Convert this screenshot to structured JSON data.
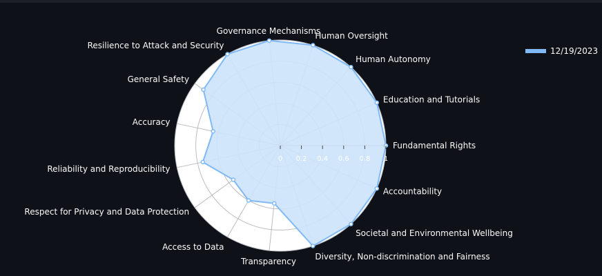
{
  "chart_data": {
    "type": "radar",
    "categories": [
      "Fundamental Rights",
      "Education and Tutorials",
      "Human Autonomy",
      "Human Oversight",
      "Governance Mechanisms",
      "Resilience to Attack and Security",
      "General Safety",
      "Accuracy",
      "Reliability and Reproducibility",
      "Respect for Privacy and Data Protection",
      "Access to Data",
      "Transparency",
      "Diversity, Non-discrimination and Fairness",
      "Societal and Environmental Wellbeing",
      "Accountability"
    ],
    "series": [
      {
        "name": "12/19/2023",
        "values": [
          1.0,
          1.0,
          1.0,
          1.0,
          1.0,
          1.0,
          0.9,
          0.65,
          0.75,
          0.55,
          0.6,
          0.55,
          1.0,
          1.0,
          1.0
        ],
        "color": "#7fb9f6"
      }
    ],
    "radial_ticks": [
      "0",
      "0.2",
      "0.4",
      "0.6",
      "0.8",
      "1"
    ],
    "rlim": [
      0,
      1
    ],
    "legend": "top-right"
  },
  "colors": {
    "background": "#0e1117",
    "polar_background": "#ffffff",
    "grid": "#b9bcc2",
    "fill": "#cde3fb",
    "line": "#7fb9f6",
    "text": "#fafafa"
  }
}
